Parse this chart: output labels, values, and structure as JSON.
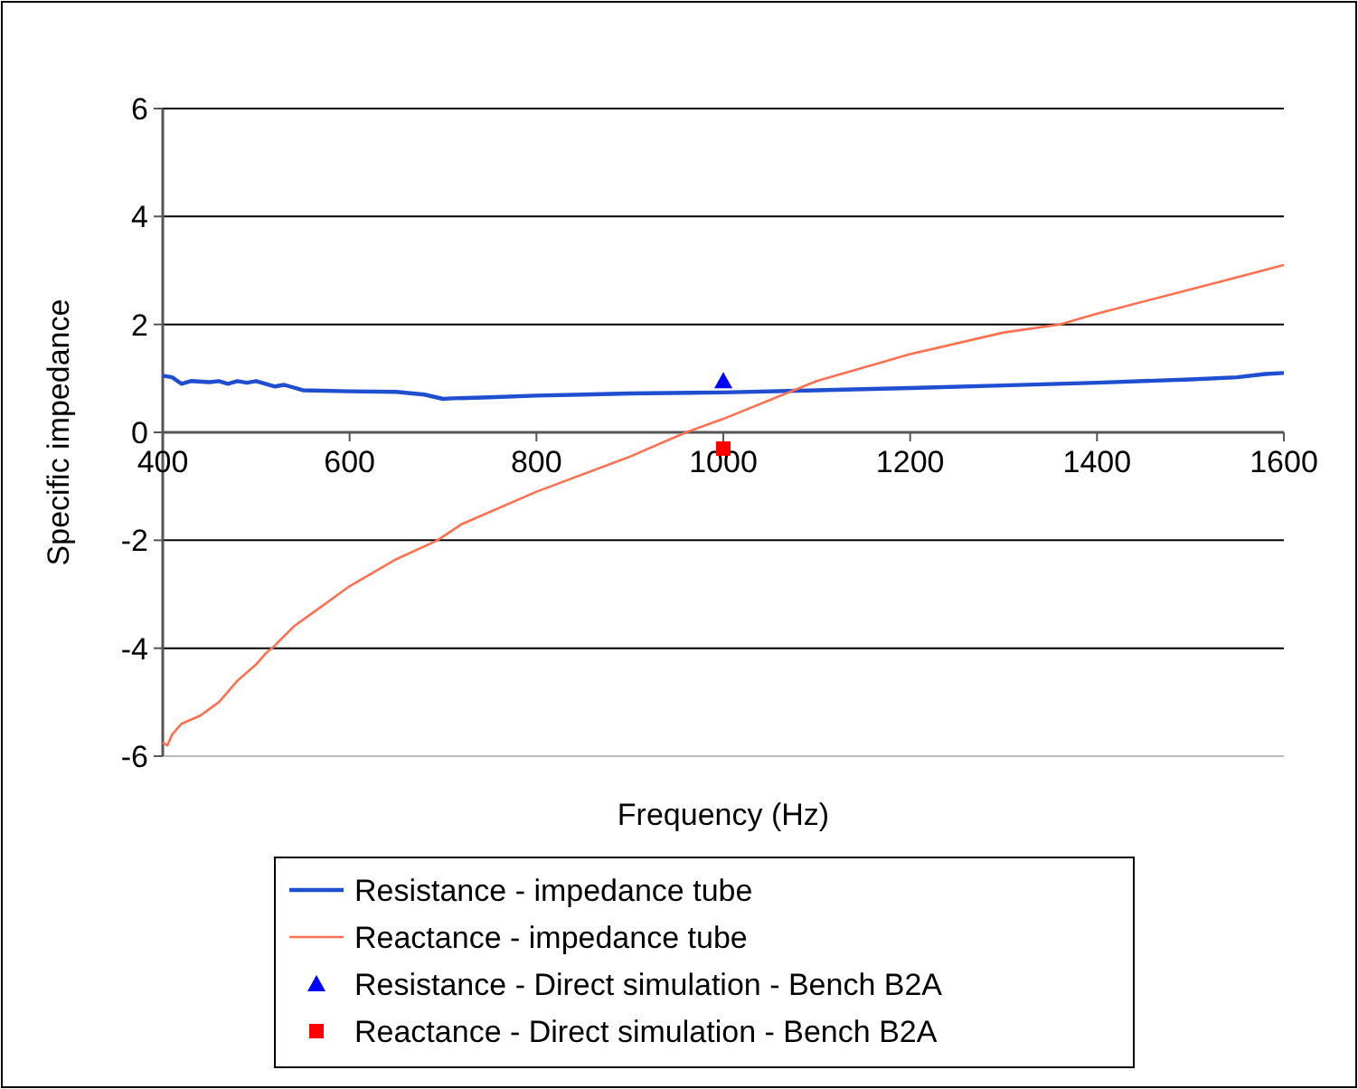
{
  "chart_data": {
    "type": "line",
    "xlabel": "Frequency (Hz)",
    "ylabel": "Specific impedance",
    "xlim": [
      400,
      1600
    ],
    "xticks": [
      400,
      600,
      800,
      1000,
      1200,
      1400,
      1600
    ],
    "ylim": [
      -6,
      6
    ],
    "yticks": [
      -6,
      -4,
      -2,
      0,
      2,
      4,
      6
    ],
    "grid": "y",
    "legend": "bottom",
    "series": [
      {
        "name": "Resistance - impedance tube",
        "color": "#1f4fd0",
        "x": [
          400,
          410,
          420,
          430,
          450,
          460,
          470,
          480,
          490,
          500,
          520,
          530,
          550,
          600,
          650,
          680,
          700,
          710,
          750,
          800,
          850,
          900,
          1000,
          1100,
          1200,
          1300,
          1400,
          1500,
          1550,
          1580,
          1600
        ],
        "values": [
          1.05,
          1.02,
          0.9,
          0.95,
          0.93,
          0.95,
          0.9,
          0.95,
          0.92,
          0.95,
          0.85,
          0.88,
          0.78,
          0.76,
          0.75,
          0.7,
          0.62,
          0.63,
          0.65,
          0.68,
          0.7,
          0.72,
          0.74,
          0.78,
          0.82,
          0.87,
          0.92,
          0.98,
          1.02,
          1.08,
          1.1
        ]
      },
      {
        "name": "Reactance - impedance tube",
        "color": "#ff7050",
        "x": [
          400,
          405,
          410,
          420,
          440,
          460,
          480,
          500,
          510,
          520,
          540,
          560,
          580,
          600,
          650,
          694,
          720,
          800,
          900,
          960,
          1000,
          1100,
          1200,
          1300,
          1360,
          1400,
          1500,
          1600
        ],
        "values": [
          -5.75,
          -5.8,
          -5.6,
          -5.4,
          -5.25,
          -5.0,
          -4.6,
          -4.3,
          -4.1,
          -3.95,
          -3.6,
          -3.35,
          -3.1,
          -2.85,
          -2.35,
          -2.0,
          -1.7,
          -1.1,
          -0.45,
          0.0,
          0.25,
          0.95,
          1.45,
          1.85,
          2.0,
          2.2,
          2.65,
          3.1
        ]
      },
      {
        "name": "Resistance - Direct simulation - Bench B2A",
        "type": "scatter",
        "marker": "triangle",
        "color": "#0000ff",
        "x": [
          1000
        ],
        "values": [
          0.95
        ]
      },
      {
        "name": "Reactance - Direct simulation - Bench B2A",
        "type": "scatter",
        "marker": "square",
        "color": "#ff0000",
        "x": [
          1000
        ],
        "values": [
          -0.3
        ]
      }
    ]
  }
}
